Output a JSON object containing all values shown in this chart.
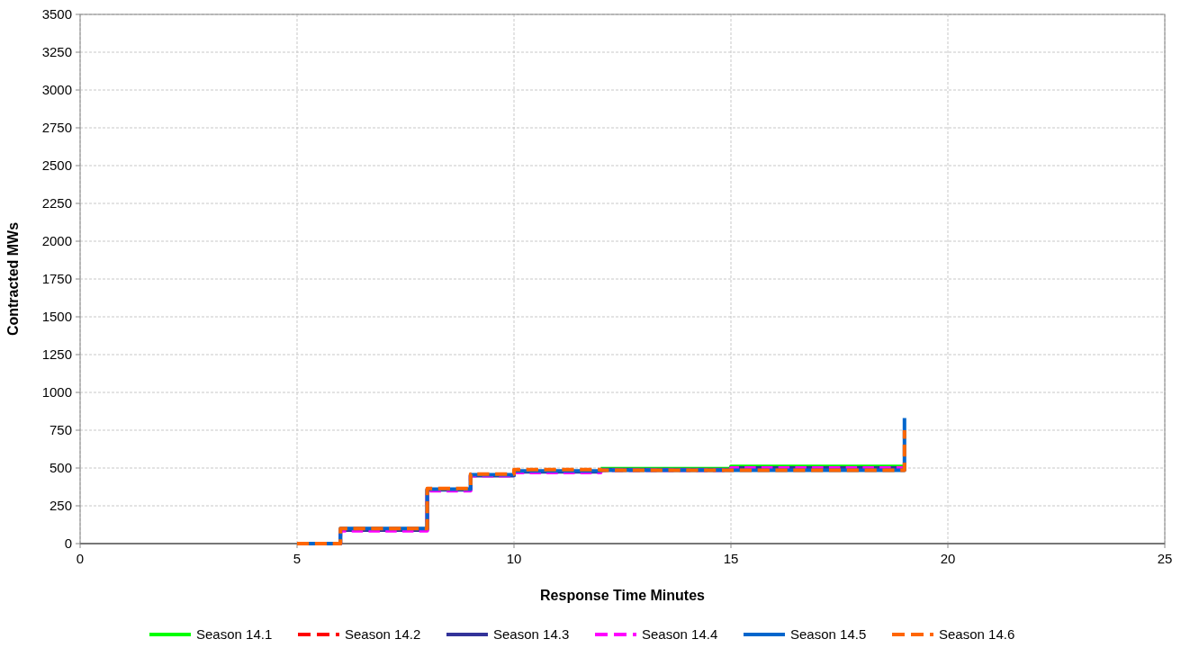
{
  "chart_data": {
    "type": "step",
    "xlabel": "Response Time Minutes",
    "ylabel": "Contracted MWs",
    "xlim": [
      0,
      25
    ],
    "xticks": [
      0,
      5,
      10,
      15,
      20,
      25
    ],
    "ylim": [
      0,
      3500
    ],
    "yticks": [
      0,
      250,
      500,
      750,
      1000,
      1250,
      1500,
      1750,
      2000,
      2250,
      2500,
      2750,
      3000,
      3250,
      3500
    ],
    "grid": true,
    "legend": "bottom",
    "x": [
      5,
      6,
      8,
      9,
      10,
      12,
      15,
      19
    ],
    "series": [
      {
        "name": "Season 14.1",
        "color": "#00ff00",
        "line_style": "solid",
        "values": [
          null,
          null,
          null,
          null,
          null,
          495,
          510,
          510
        ]
      },
      {
        "name": "Season 14.2",
        "color": "#ff0000",
        "line_style": "dashed",
        "values": [
          null,
          null,
          null,
          null,
          null,
          null,
          null,
          null
        ]
      },
      {
        "name": "Season 14.3",
        "color": "#333399",
        "line_style": "solid",
        "values": [
          0,
          90,
          355,
          450,
          475,
          490,
          500,
          500
        ]
      },
      {
        "name": "Season 14.4",
        "color": "#ff00ff",
        "line_style": "dashed",
        "values": [
          0,
          85,
          350,
          450,
          470,
          485,
          500,
          500
        ]
      },
      {
        "name": "Season 14.5",
        "color": "#0066cc",
        "line_style": "solid",
        "values": [
          0,
          100,
          360,
          455,
          480,
          485,
          485,
          830
        ]
      },
      {
        "name": "Season 14.6",
        "color": "#ff6600",
        "line_style": "dashed",
        "values": [
          0,
          100,
          365,
          460,
          490,
          485,
          485,
          750
        ]
      }
    ]
  }
}
